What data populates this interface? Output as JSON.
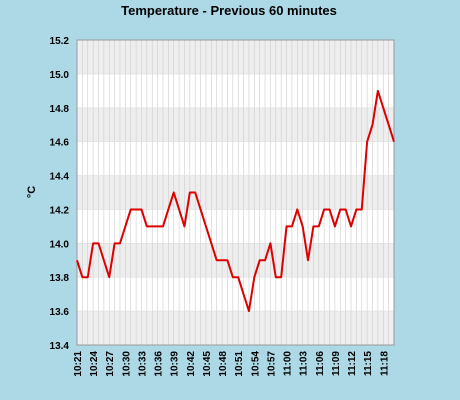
{
  "chart_data": {
    "type": "line",
    "title": "Temperature - Previous 60 minutes",
    "xlabel": "",
    "ylabel": "°C",
    "ylim": [
      13.4,
      15.2
    ],
    "yticks": [
      "13.4",
      "13.6",
      "13.8",
      "14.0",
      "14.2",
      "14.4",
      "14.6",
      "14.8",
      "15.0",
      "15.2"
    ],
    "xticks": [
      "10:21",
      "10:24",
      "10:27",
      "10:30",
      "10:33",
      "10:36",
      "10:39",
      "10:42",
      "10:45",
      "10:48",
      "10:51",
      "10:54",
      "10:57",
      "11:00",
      "11:03",
      "11:06",
      "11:09",
      "11:12",
      "11:15",
      "11:18"
    ],
    "grid": true,
    "colors": {
      "line": "#dd0000",
      "band": "#eeeeee",
      "plot_bg": "#ffffff",
      "grid": "#cccccc",
      "background": "#add8e6"
    },
    "series": [
      {
        "values": [
          13.9,
          13.8,
          13.8,
          14.0,
          14.0,
          13.9,
          13.8,
          14.0,
          14.0,
          14.1,
          14.2,
          14.2,
          14.2,
          14.1,
          14.1,
          14.1,
          14.1,
          14.2,
          14.3,
          14.2,
          14.1,
          14.3,
          14.3,
          14.2,
          14.1,
          14.0,
          13.9,
          13.9,
          13.9,
          13.8,
          13.8,
          13.7,
          13.6,
          13.8,
          13.9,
          13.9,
          14.0,
          13.8,
          13.8,
          14.1,
          14.1,
          14.2,
          14.1,
          13.9,
          14.1,
          14.1,
          14.2,
          14.2,
          14.1,
          14.2,
          14.2,
          14.1,
          14.2,
          14.2,
          14.6,
          14.7,
          14.9,
          14.8,
          14.7,
          14.6
        ]
      }
    ]
  }
}
